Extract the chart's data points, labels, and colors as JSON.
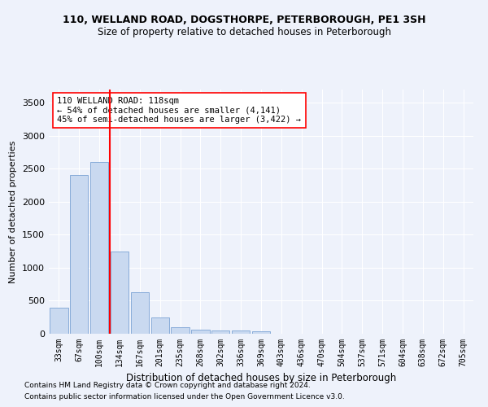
{
  "title1": "110, WELLAND ROAD, DOGSTHORPE, PETERBOROUGH, PE1 3SH",
  "title2": "Size of property relative to detached houses in Peterborough",
  "xlabel": "Distribution of detached houses by size in Peterborough",
  "ylabel": "Number of detached properties",
  "categories": [
    "33sqm",
    "67sqm",
    "100sqm",
    "134sqm",
    "167sqm",
    "201sqm",
    "235sqm",
    "268sqm",
    "302sqm",
    "336sqm",
    "369sqm",
    "403sqm",
    "436sqm",
    "470sqm",
    "504sqm",
    "537sqm",
    "571sqm",
    "604sqm",
    "638sqm",
    "672sqm",
    "705sqm"
  ],
  "values": [
    390,
    2400,
    2600,
    1250,
    630,
    250,
    100,
    60,
    50,
    50,
    40,
    0,
    0,
    0,
    0,
    0,
    0,
    0,
    0,
    0,
    0
  ],
  "bar_color": "#c9d9f0",
  "bar_edge_color": "#7ba3d4",
  "redline_x": 2.5,
  "annotation_line1": "110 WELLAND ROAD: 118sqm",
  "annotation_line2": "← 54% of detached houses are smaller (4,141)",
  "annotation_line3": "45% of semi-detached houses are larger (3,422) →",
  "ylim": [
    0,
    3700
  ],
  "yticks": [
    0,
    500,
    1000,
    1500,
    2000,
    2500,
    3000,
    3500
  ],
  "footer1": "Contains HM Land Registry data © Crown copyright and database right 2024.",
  "footer2": "Contains public sector information licensed under the Open Government Licence v3.0.",
  "bg_color": "#eef2fb",
  "grid_color": "#ffffff",
  "title_fontsize": 9,
  "subtitle_fontsize": 8.5
}
